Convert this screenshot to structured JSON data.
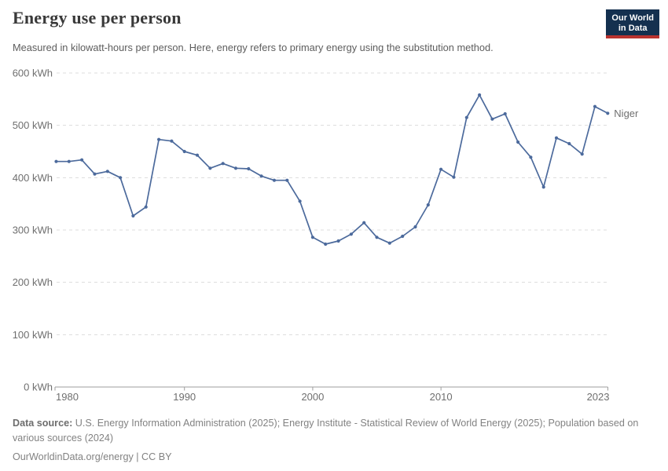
{
  "header": {
    "title": "Energy use per person",
    "subtitle": "Measured in kilowatt-hours per person. Here, energy refers to primary energy using the substitution method.",
    "logo": {
      "line1": "Our World",
      "line2": "in Data"
    }
  },
  "chart_data": {
    "type": "line",
    "title": "Energy use per person",
    "ylabel": "",
    "xlabel": "",
    "unit": "kWh",
    "grid": true,
    "legend_position": "end-of-line-label",
    "xlim": [
      1980,
      2023
    ],
    "ylim": [
      0,
      600
    ],
    "x": [
      1980,
      1981,
      1982,
      1983,
      1984,
      1985,
      1986,
      1987,
      1988,
      1989,
      1990,
      1991,
      1992,
      1993,
      1994,
      1995,
      1996,
      1997,
      1998,
      1999,
      2000,
      2001,
      2002,
      2003,
      2004,
      2005,
      2006,
      2007,
      2008,
      2009,
      2010,
      2011,
      2012,
      2013,
      2014,
      2015,
      2016,
      2017,
      2018,
      2019,
      2020,
      2021,
      2022,
      2023
    ],
    "series": [
      {
        "name": "Niger",
        "values": [
          431,
          431,
          434,
          407,
          412,
          400,
          327,
          344,
          473,
          470,
          450,
          443,
          418,
          427,
          418,
          417,
          403,
          395,
          395,
          355,
          286,
          273,
          279,
          292,
          314,
          286,
          275,
          288,
          306,
          348,
          416,
          401,
          515,
          558,
          512,
          522,
          468,
          439,
          382,
          476,
          465,
          445,
          536,
          523
        ]
      }
    ],
    "y_ticks": [
      {
        "value": 0,
        "label": "0 kWh"
      },
      {
        "value": 100,
        "label": "100 kWh"
      },
      {
        "value": 200,
        "label": "200 kWh"
      },
      {
        "value": 300,
        "label": "300 kWh"
      },
      {
        "value": 400,
        "label": "400 kWh"
      },
      {
        "value": 500,
        "label": "500 kWh"
      },
      {
        "value": 600,
        "label": "600 kWh"
      }
    ],
    "x_ticks": [
      {
        "value": 1980,
        "label": "1980",
        "anchor": "start"
      },
      {
        "value": 1990,
        "label": "1990",
        "anchor": "middle"
      },
      {
        "value": 2000,
        "label": "2000",
        "anchor": "middle"
      },
      {
        "value": 2010,
        "label": "2010",
        "anchor": "middle"
      },
      {
        "value": 2023,
        "label": "2023",
        "anchor": "end"
      }
    ]
  },
  "footer": {
    "datasource_label": "Data source:",
    "datasource_text": " U.S. Energy Information Administration (2025); Energy Institute - Statistical Review of World Energy (2025); Population based on various sources (2024)",
    "link_line": "OurWorldinData.org/energy | CC BY"
  },
  "colors": {
    "line": "#4C6A9C",
    "gridline": "#dcdcdc",
    "axis": "#9e9e9e",
    "tick_label": "#6f6f6f",
    "logo_bg": "#14304F",
    "logo_bar": "#B9332F"
  }
}
